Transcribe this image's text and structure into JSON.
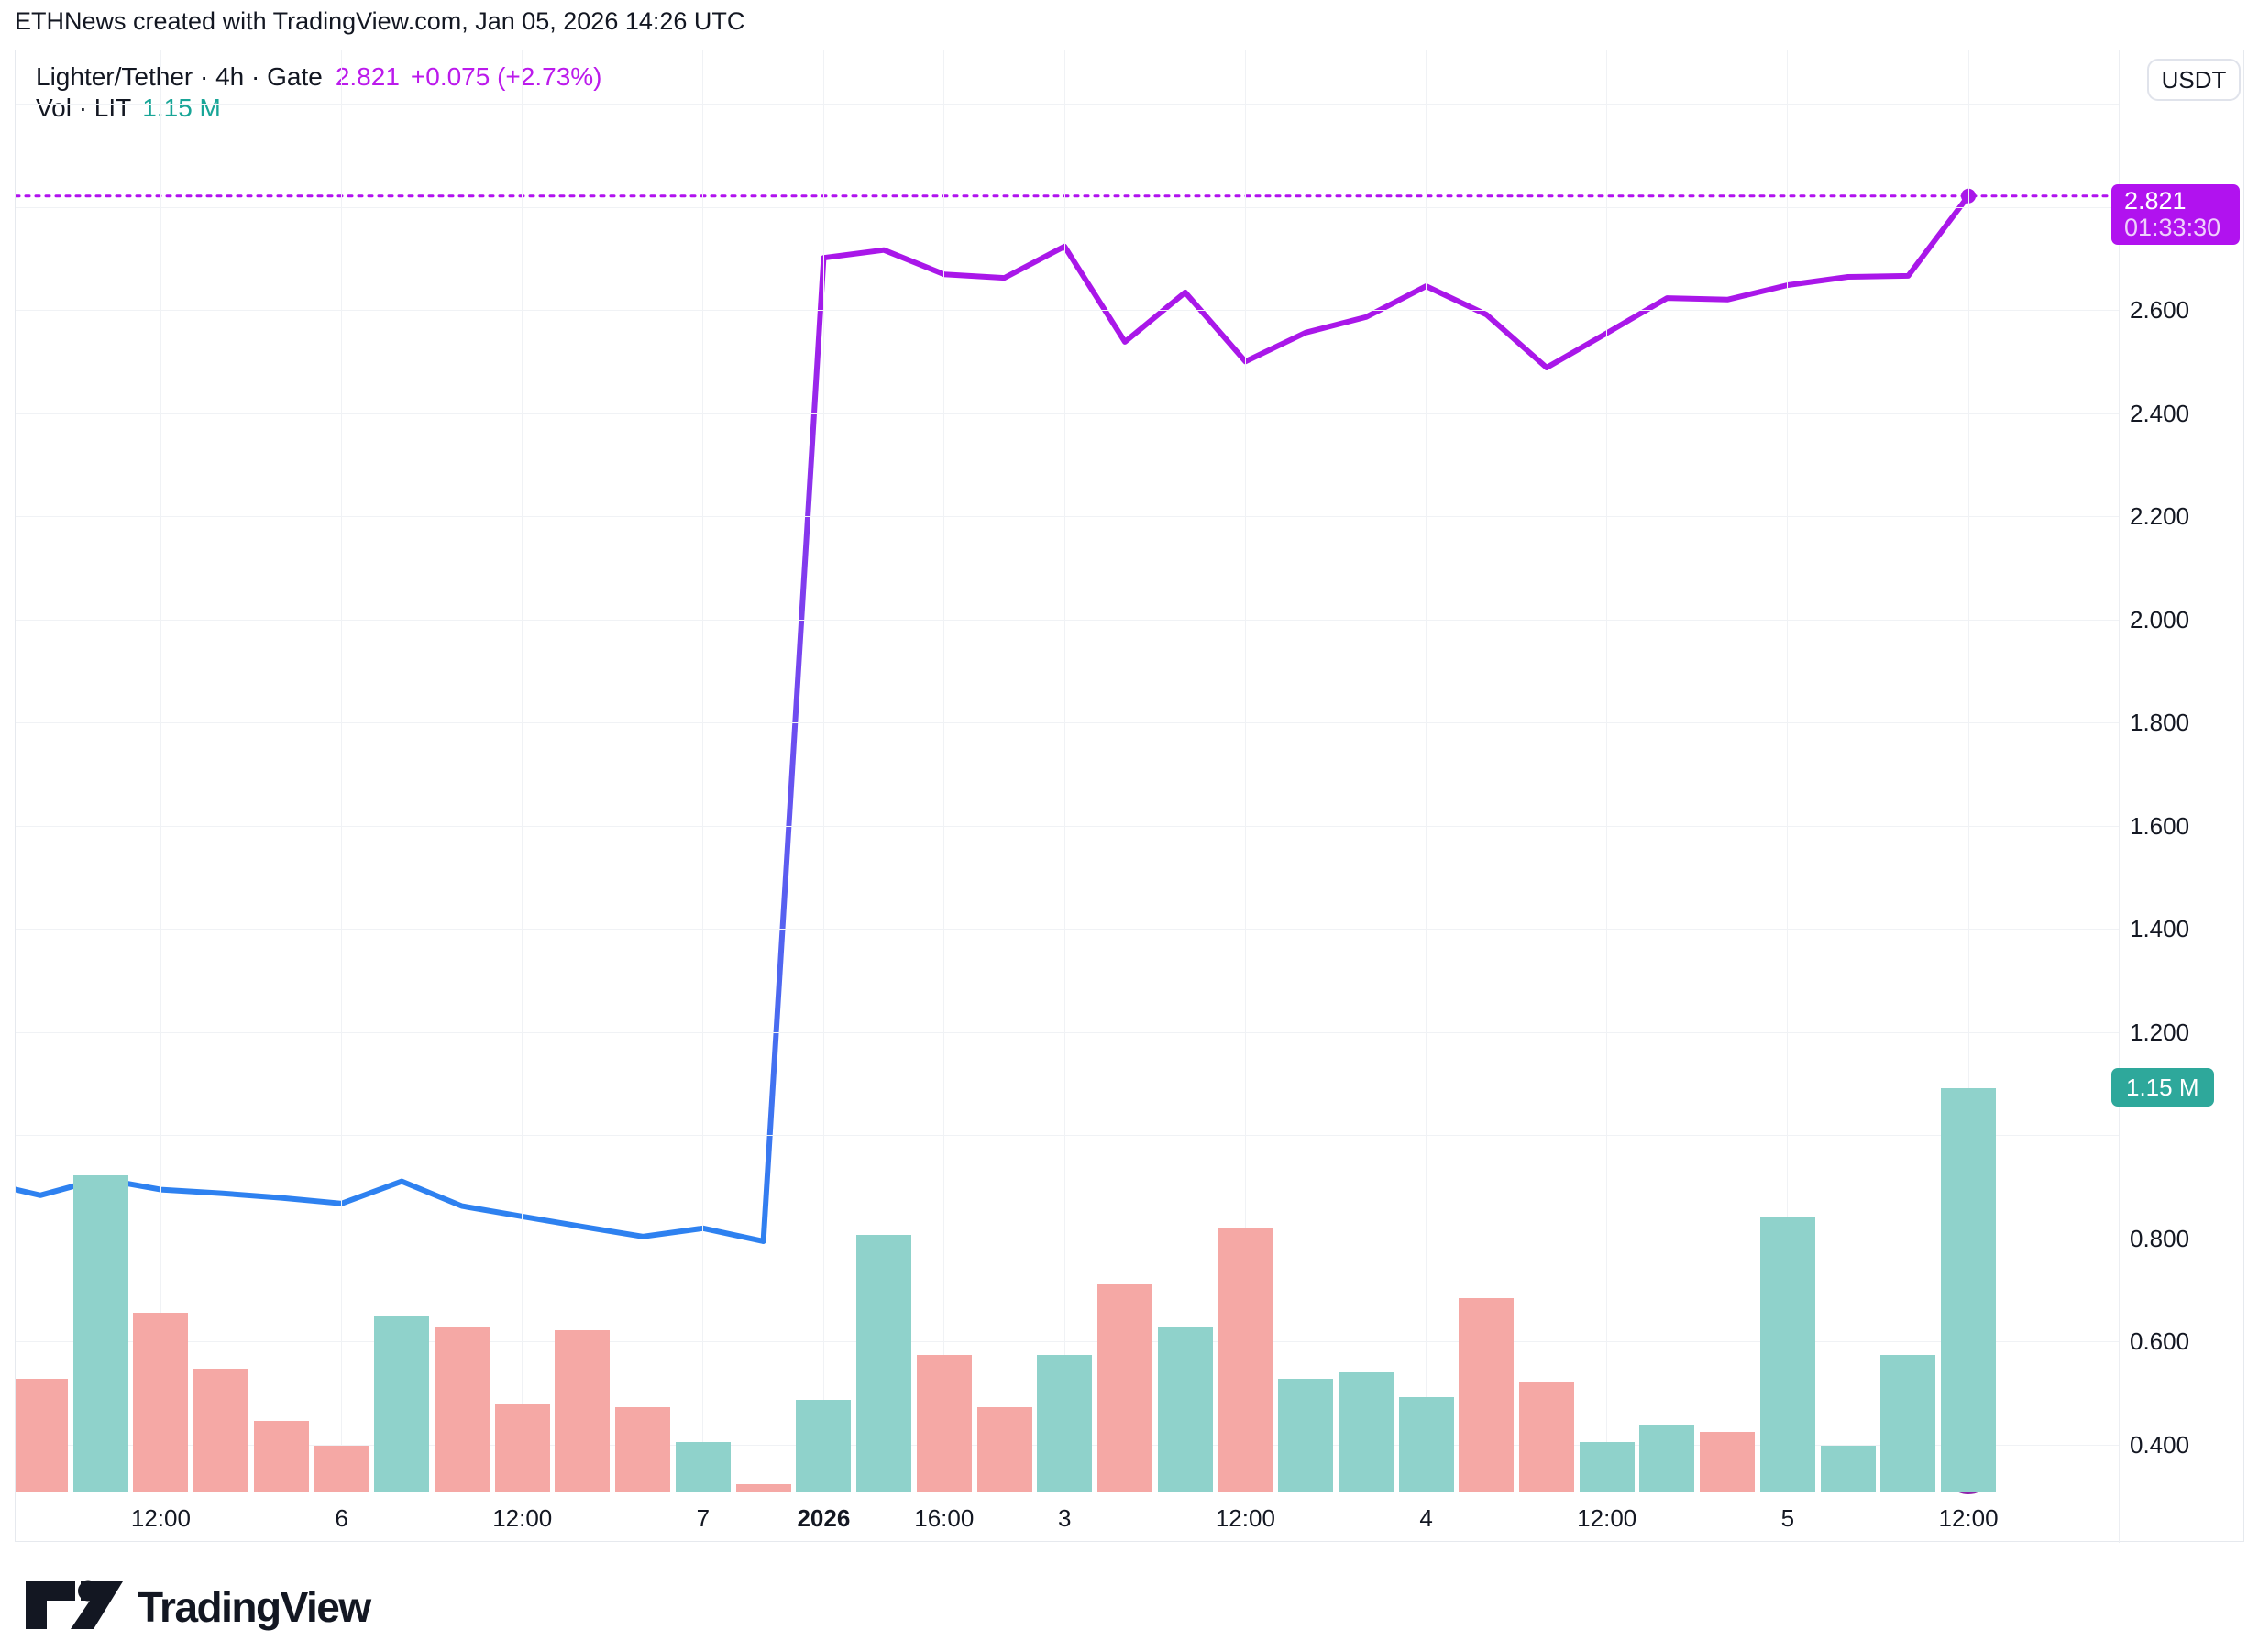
{
  "header": {
    "title": "ETHNews created with TradingView.com, Jan 05, 2026 14:26 UTC"
  },
  "legend": {
    "symbol_line": "Lighter/Tether · 4h · Gate",
    "price": "2.821",
    "change": "+0.075 (+2.73%)",
    "vol_label": "Vol · LIT",
    "vol_value": "1.15 M"
  },
  "axis": {
    "currency_button": "USDT",
    "price_badge": {
      "price": "2.821",
      "countdown": "01:33:30"
    },
    "volume_badge": "1.15 M",
    "price_ticks": [
      {
        "label": "2.600",
        "value": 2.6
      },
      {
        "label": "2.400",
        "value": 2.4
      },
      {
        "label": "2.200",
        "value": 2.2
      },
      {
        "label": "2.000",
        "value": 2.0
      },
      {
        "label": "1.800",
        "value": 1.8
      },
      {
        "label": "1.600",
        "value": 1.6
      },
      {
        "label": "1.400",
        "value": 1.4
      },
      {
        "label": "1.200",
        "value": 1.2
      },
      {
        "label": "0.800",
        "value": 0.8
      },
      {
        "label": "0.600",
        "value": 0.6
      },
      {
        "label": "0.400",
        "value": 0.4
      }
    ]
  },
  "footer": {
    "logo_text": "TradingView"
  },
  "colors": {
    "line_blue": "#2e81f0",
    "line_purple": "#a917e9",
    "price_badge_bg": "#b112ef",
    "legend_magenta": "#bb1aec",
    "legend_teal": "#18a597",
    "vol_badge_bg": "#2ea89b",
    "vol_up": "#8fd2cb",
    "vol_down": "#f5a8a5",
    "grid": "#f0f2f5"
  },
  "chart_data": {
    "type": "line",
    "title": "Lighter/Tether (LIT/USDT) · 4h · Gate — price line with volume bars",
    "current_price": 2.821,
    "price_change": "+0.075",
    "price_change_pct": "+2.73%",
    "current_volume_millions": 1.15,
    "countdown_to_bar_close": "01:33:30",
    "quote_currency": "USDT",
    "left_edge_price": 0.894,
    "jump_start_index": 12,
    "price_axis_gridlines": [
      3.0,
      2.8,
      2.6,
      2.4,
      2.2,
      2.0,
      1.8,
      1.6,
      1.4,
      1.2,
      1.0,
      0.8,
      0.6,
      0.4
    ],
    "price_axis_range": [
      0.31,
      3.01
    ],
    "x_tick_labels": [
      {
        "index": 2,
        "label": "12:00"
      },
      {
        "index": 5,
        "label": "6"
      },
      {
        "index": 8,
        "label": "12:00"
      },
      {
        "index": 11,
        "label": "7"
      },
      {
        "index": 13,
        "label": "2026",
        "bold": true
      },
      {
        "index": 15,
        "label": "16:00"
      },
      {
        "index": 17,
        "label": "3"
      },
      {
        "index": 20,
        "label": "12:00"
      },
      {
        "index": 23,
        "label": "4"
      },
      {
        "index": 26,
        "label": "12:00"
      },
      {
        "index": 29,
        "label": "5"
      },
      {
        "index": 32,
        "label": "12:00"
      }
    ],
    "price_series": [
      0.883,
      0.915,
      0.894,
      0.887,
      0.878,
      0.867,
      0.91,
      0.862,
      0.842,
      0.822,
      0.803,
      0.819,
      0.794,
      2.701,
      2.716,
      2.669,
      2.662,
      2.723,
      2.538,
      2.634,
      2.5,
      2.556,
      2.586,
      2.646,
      2.591,
      2.488,
      2.555,
      2.623,
      2.62,
      2.648,
      2.664,
      2.666,
      2.821
    ],
    "volume_series_millions": [
      0.32,
      0.9,
      0.51,
      0.35,
      0.2,
      0.13,
      0.5,
      0.47,
      0.25,
      0.46,
      0.24,
      0.14,
      0.02,
      0.26,
      0.73,
      0.39,
      0.24,
      0.39,
      0.59,
      0.47,
      0.75,
      0.32,
      0.34,
      0.27,
      0.55,
      0.31,
      0.14,
      0.19,
      0.17,
      0.78,
      0.13,
      0.39,
      1.15
    ],
    "volume_direction": [
      "down",
      "up",
      "down",
      "down",
      "down",
      "down",
      "up",
      "down",
      "down",
      "down",
      "down",
      "up",
      "down",
      "up",
      "up",
      "down",
      "down",
      "up",
      "down",
      "up",
      "down",
      "up",
      "up",
      "up",
      "down",
      "down",
      "up",
      "up",
      "down",
      "up",
      "up",
      "up",
      "up"
    ]
  }
}
